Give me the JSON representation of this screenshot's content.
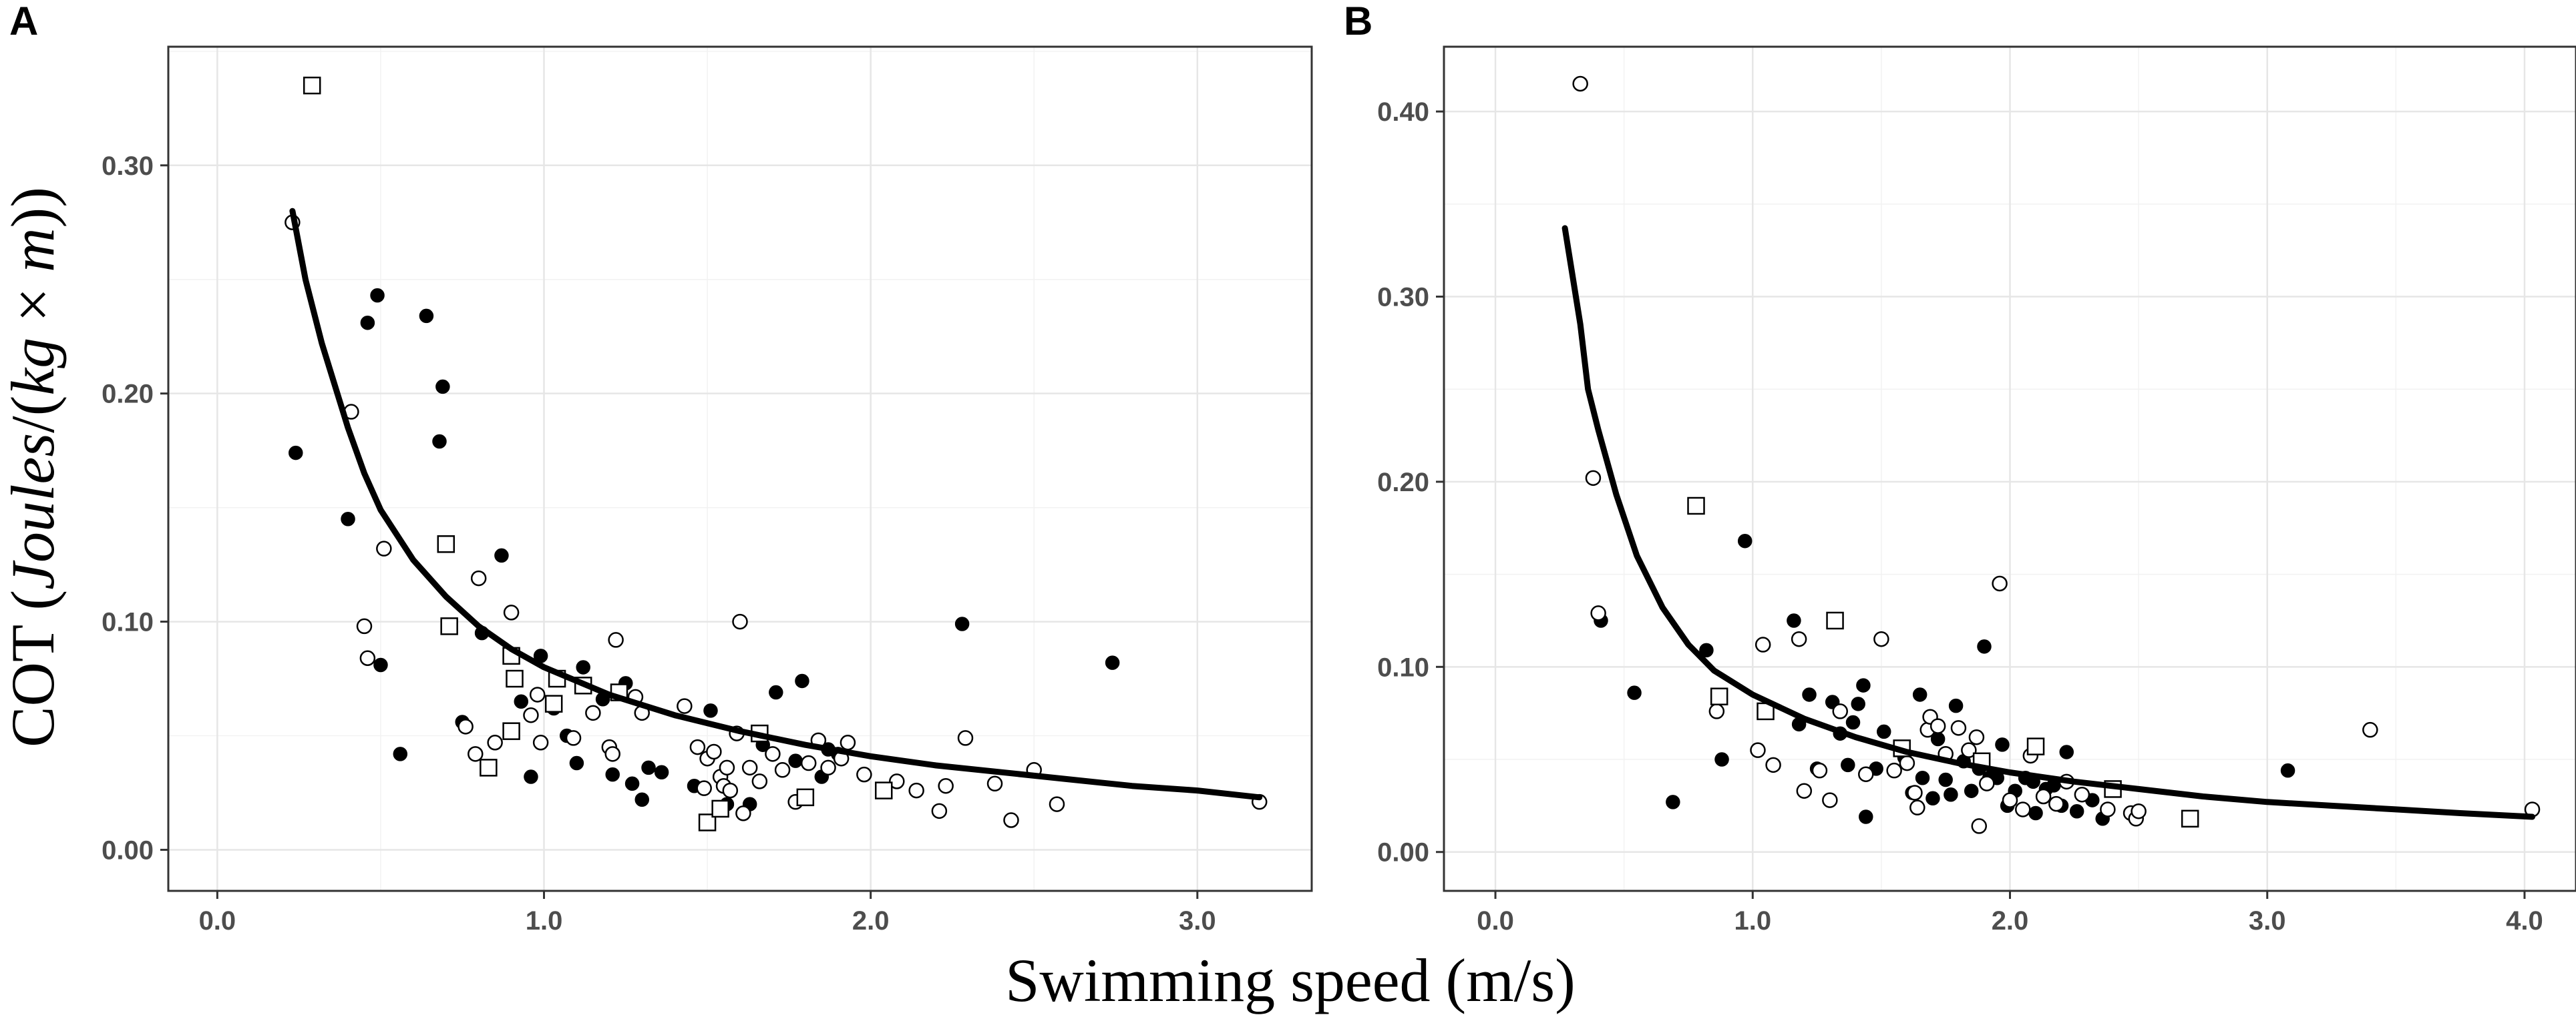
{
  "chart_data": [
    {
      "panel": "A",
      "type": "scatter",
      "xlabel": "Swimming speed (m/s)",
      "ylabel": {
        "prefix": "COT (",
        "italic": "Joules",
        "slash": "/(",
        "italic2": "kg",
        "times": " × ",
        "italic3": "m",
        "suffix": "))"
      },
      "xlim": [
        -0.15,
        3.35
      ],
      "ylim": [
        -0.018,
        0.352
      ],
      "xticks": [
        0.0,
        1.0,
        2.0,
        3.0
      ],
      "xtick_labels": [
        "0.0",
        "1.0",
        "2.0",
        "3.0"
      ],
      "yticks": [
        0.0,
        0.1,
        0.2,
        0.3
      ],
      "ytick_labels": [
        "0.00",
        "0.10",
        "0.20",
        "0.30"
      ],
      "series": [
        {
          "name": "filled-circle",
          "marker": "filled-circle",
          "points": [
            [
              0.24,
              0.174
            ],
            [
              0.4,
              0.145
            ],
            [
              0.46,
              0.231
            ],
            [
              0.49,
              0.243
            ],
            [
              0.5,
              0.081
            ],
            [
              0.56,
              0.042
            ],
            [
              0.64,
              0.234
            ],
            [
              0.68,
              0.179
            ],
            [
              0.69,
              0.203
            ],
            [
              0.75,
              0.056
            ],
            [
              0.81,
              0.095
            ],
            [
              0.87,
              0.129
            ],
            [
              0.93,
              0.065
            ],
            [
              0.96,
              0.032
            ],
            [
              0.99,
              0.085
            ],
            [
              1.03,
              0.062
            ],
            [
              1.07,
              0.05
            ],
            [
              1.1,
              0.038
            ],
            [
              1.12,
              0.08
            ],
            [
              1.18,
              0.066
            ],
            [
              1.21,
              0.033
            ],
            [
              1.25,
              0.073
            ],
            [
              1.27,
              0.029
            ],
            [
              1.3,
              0.022
            ],
            [
              1.32,
              0.036
            ],
            [
              1.36,
              0.034
            ],
            [
              1.46,
              0.028
            ],
            [
              1.51,
              0.061
            ],
            [
              1.56,
              0.02
            ],
            [
              1.63,
              0.02
            ],
            [
              1.67,
              0.046
            ],
            [
              1.71,
              0.069
            ],
            [
              1.77,
              0.039
            ],
            [
              1.79,
              0.074
            ],
            [
              1.85,
              0.032
            ],
            [
              1.87,
              0.044
            ],
            [
              1.9,
              0.042
            ],
            [
              2.28,
              0.099
            ],
            [
              2.74,
              0.082
            ]
          ]
        },
        {
          "name": "open-circle",
          "marker": "open-circle",
          "points": [
            [
              0.23,
              0.275
            ],
            [
              0.41,
              0.192
            ],
            [
              0.45,
              0.098
            ],
            [
              0.46,
              0.084
            ],
            [
              0.51,
              0.132
            ],
            [
              0.76,
              0.054
            ],
            [
              0.79,
              0.042
            ],
            [
              0.8,
              0.119
            ],
            [
              0.85,
              0.047
            ],
            [
              0.9,
              0.104
            ],
            [
              0.96,
              0.059
            ],
            [
              0.98,
              0.068
            ],
            [
              0.99,
              0.047
            ],
            [
              1.09,
              0.049
            ],
            [
              1.15,
              0.06
            ],
            [
              1.2,
              0.045
            ],
            [
              1.21,
              0.042
            ],
            [
              1.22,
              0.092
            ],
            [
              1.28,
              0.067
            ],
            [
              1.3,
              0.06
            ],
            [
              1.43,
              0.063
            ],
            [
              1.47,
              0.045
            ],
            [
              1.49,
              0.027
            ],
            [
              1.5,
              0.04
            ],
            [
              1.52,
              0.043
            ],
            [
              1.54,
              0.032
            ],
            [
              1.55,
              0.028
            ],
            [
              1.56,
              0.036
            ],
            [
              1.57,
              0.026
            ],
            [
              1.59,
              0.051
            ],
            [
              1.6,
              0.1
            ],
            [
              1.61,
              0.016
            ],
            [
              1.63,
              0.036
            ],
            [
              1.66,
              0.03
            ],
            [
              1.7,
              0.042
            ],
            [
              1.73,
              0.035
            ],
            [
              1.77,
              0.021
            ],
            [
              1.81,
              0.038
            ],
            [
              1.84,
              0.048
            ],
            [
              1.87,
              0.036
            ],
            [
              1.91,
              0.04
            ],
            [
              1.93,
              0.047
            ],
            [
              1.98,
              0.033
            ],
            [
              2.08,
              0.03
            ],
            [
              2.14,
              0.026
            ],
            [
              2.21,
              0.017
            ],
            [
              2.23,
              0.028
            ],
            [
              2.29,
              0.049
            ],
            [
              2.38,
              0.029
            ],
            [
              2.43,
              0.013
            ],
            [
              2.5,
              0.035
            ],
            [
              2.57,
              0.02
            ],
            [
              3.19,
              0.021
            ]
          ]
        },
        {
          "name": "open-square",
          "marker": "open-square",
          "points": [
            [
              0.29,
              0.335
            ],
            [
              0.7,
              0.134
            ],
            [
              0.71,
              0.098
            ],
            [
              0.83,
              0.036
            ],
            [
              0.9,
              0.052
            ],
            [
              0.9,
              0.085
            ],
            [
              0.91,
              0.075
            ],
            [
              1.03,
              0.064
            ],
            [
              1.04,
              0.075
            ],
            [
              1.12,
              0.072
            ],
            [
              1.23,
              0.069
            ],
            [
              1.5,
              0.012
            ],
            [
              1.54,
              0.018
            ],
            [
              1.66,
              0.051
            ],
            [
              1.8,
              0.023
            ],
            [
              2.04,
              0.026
            ]
          ]
        }
      ],
      "fit": [
        [
          0.23,
          0.28
        ],
        [
          0.27,
          0.25
        ],
        [
          0.32,
          0.222
        ],
        [
          0.4,
          0.185
        ],
        [
          0.45,
          0.165
        ],
        [
          0.5,
          0.149
        ],
        [
          0.6,
          0.127
        ],
        [
          0.7,
          0.111
        ],
        [
          0.8,
          0.098
        ],
        [
          0.9,
          0.088
        ],
        [
          1.0,
          0.08
        ],
        [
          1.2,
          0.068
        ],
        [
          1.4,
          0.059
        ],
        [
          1.6,
          0.052
        ],
        [
          1.8,
          0.046
        ],
        [
          2.0,
          0.041
        ],
        [
          2.2,
          0.037
        ],
        [
          2.4,
          0.034
        ],
        [
          2.6,
          0.031
        ],
        [
          2.8,
          0.028
        ],
        [
          3.0,
          0.026
        ],
        [
          3.19,
          0.023
        ]
      ]
    },
    {
      "panel": "B",
      "type": "scatter",
      "xlabel": "Swimming speed (m/s)",
      "xlim": [
        -0.2,
        4.2
      ],
      "ylim": [
        -0.021,
        0.435
      ],
      "xticks": [
        0.0,
        1.0,
        2.0,
        3.0,
        4.0
      ],
      "xtick_labels": [
        "0.0",
        "1.0",
        "2.0",
        "3.0",
        "4.0"
      ],
      "yticks": [
        0.0,
        0.1,
        0.2,
        0.3,
        0.4
      ],
      "ytick_labels": [
        "0.00",
        "0.10",
        "0.20",
        "0.30",
        "0.40"
      ],
      "series": [
        {
          "name": "filled-circle",
          "marker": "filled-circle",
          "points": [
            [
              0.41,
              0.125
            ],
            [
              0.54,
              0.086
            ],
            [
              0.69,
              0.027
            ],
            [
              0.82,
              0.109
            ],
            [
              0.88,
              0.05
            ],
            [
              0.97,
              0.168
            ],
            [
              1.16,
              0.125
            ],
            [
              1.18,
              0.069
            ],
            [
              1.22,
              0.085
            ],
            [
              1.25,
              0.045
            ],
            [
              1.31,
              0.081
            ],
            [
              1.34,
              0.064
            ],
            [
              1.37,
              0.047
            ],
            [
              1.39,
              0.07
            ],
            [
              1.41,
              0.08
            ],
            [
              1.43,
              0.09
            ],
            [
              1.44,
              0.019
            ],
            [
              1.48,
              0.045
            ],
            [
              1.51,
              0.065
            ],
            [
              1.59,
              0.051
            ],
            [
              1.62,
              0.032
            ],
            [
              1.65,
              0.085
            ],
            [
              1.66,
              0.04
            ],
            [
              1.7,
              0.029
            ],
            [
              1.72,
              0.061
            ],
            [
              1.75,
              0.039
            ],
            [
              1.77,
              0.031
            ],
            [
              1.79,
              0.079
            ],
            [
              1.82,
              0.049
            ],
            [
              1.85,
              0.033
            ],
            [
              1.88,
              0.045
            ],
            [
              1.9,
              0.111
            ],
            [
              1.92,
              0.04
            ],
            [
              1.95,
              0.04
            ],
            [
              1.97,
              0.058
            ],
            [
              1.99,
              0.025
            ],
            [
              2.02,
              0.033
            ],
            [
              2.06,
              0.04
            ],
            [
              2.09,
              0.038
            ],
            [
              2.1,
              0.021
            ],
            [
              2.14,
              0.034
            ],
            [
              2.17,
              0.036
            ],
            [
              2.2,
              0.025
            ],
            [
              2.22,
              0.054
            ],
            [
              2.26,
              0.022
            ],
            [
              2.32,
              0.028
            ],
            [
              2.36,
              0.018
            ],
            [
              3.08,
              0.044
            ]
          ]
        },
        {
          "name": "open-circle",
          "marker": "open-circle",
          "points": [
            [
              0.33,
              0.415
            ],
            [
              0.38,
              0.202
            ],
            [
              0.4,
              0.129
            ],
            [
              0.86,
              0.076
            ],
            [
              1.02,
              0.055
            ],
            [
              1.04,
              0.112
            ],
            [
              1.08,
              0.047
            ],
            [
              1.18,
              0.115
            ],
            [
              1.2,
              0.033
            ],
            [
              1.26,
              0.044
            ],
            [
              1.3,
              0.028
            ],
            [
              1.34,
              0.076
            ],
            [
              1.44,
              0.042
            ],
            [
              1.5,
              0.115
            ],
            [
              1.55,
              0.044
            ],
            [
              1.6,
              0.048
            ],
            [
              1.63,
              0.032
            ],
            [
              1.64,
              0.024
            ],
            [
              1.68,
              0.066
            ],
            [
              1.69,
              0.073
            ],
            [
              1.72,
              0.068
            ],
            [
              1.75,
              0.053
            ],
            [
              1.8,
              0.067
            ],
            [
              1.84,
              0.055
            ],
            [
              1.87,
              0.062
            ],
            [
              1.88,
              0.014
            ],
            [
              1.91,
              0.037
            ],
            [
              1.96,
              0.145
            ],
            [
              2.0,
              0.028
            ],
            [
              2.05,
              0.023
            ],
            [
              2.08,
              0.052
            ],
            [
              2.13,
              0.03
            ],
            [
              2.18,
              0.026
            ],
            [
              2.22,
              0.038
            ],
            [
              2.28,
              0.031
            ],
            [
              2.38,
              0.023
            ],
            [
              2.47,
              0.021
            ],
            [
              2.49,
              0.018
            ],
            [
              2.5,
              0.022
            ],
            [
              3.4,
              0.066
            ],
            [
              4.03,
              0.023
            ]
          ]
        },
        {
          "name": "open-square",
          "marker": "open-square",
          "points": [
            [
              0.78,
              0.187
            ],
            [
              0.87,
              0.084
            ],
            [
              1.05,
              0.076
            ],
            [
              1.32,
              0.125
            ],
            [
              1.58,
              0.056
            ],
            [
              1.89,
              0.049
            ],
            [
              2.1,
              0.057
            ],
            [
              2.4,
              0.034
            ],
            [
              2.7,
              0.018
            ]
          ]
        }
      ],
      "fit": [
        [
          0.27,
          0.337
        ],
        [
          0.33,
          0.285
        ],
        [
          0.36,
          0.25
        ],
        [
          0.4,
          0.228
        ],
        [
          0.47,
          0.193
        ],
        [
          0.55,
          0.16
        ],
        [
          0.65,
          0.132
        ],
        [
          0.75,
          0.112
        ],
        [
          0.85,
          0.098
        ],
        [
          1.0,
          0.085
        ],
        [
          1.2,
          0.072
        ],
        [
          1.4,
          0.062
        ],
        [
          1.6,
          0.054
        ],
        [
          1.8,
          0.048
        ],
        [
          2.0,
          0.043
        ],
        [
          2.25,
          0.038
        ],
        [
          2.5,
          0.034
        ],
        [
          2.75,
          0.03
        ],
        [
          3.0,
          0.027
        ],
        [
          3.25,
          0.025
        ],
        [
          3.5,
          0.023
        ],
        [
          3.75,
          0.021
        ],
        [
          4.03,
          0.019
        ]
      ]
    }
  ]
}
